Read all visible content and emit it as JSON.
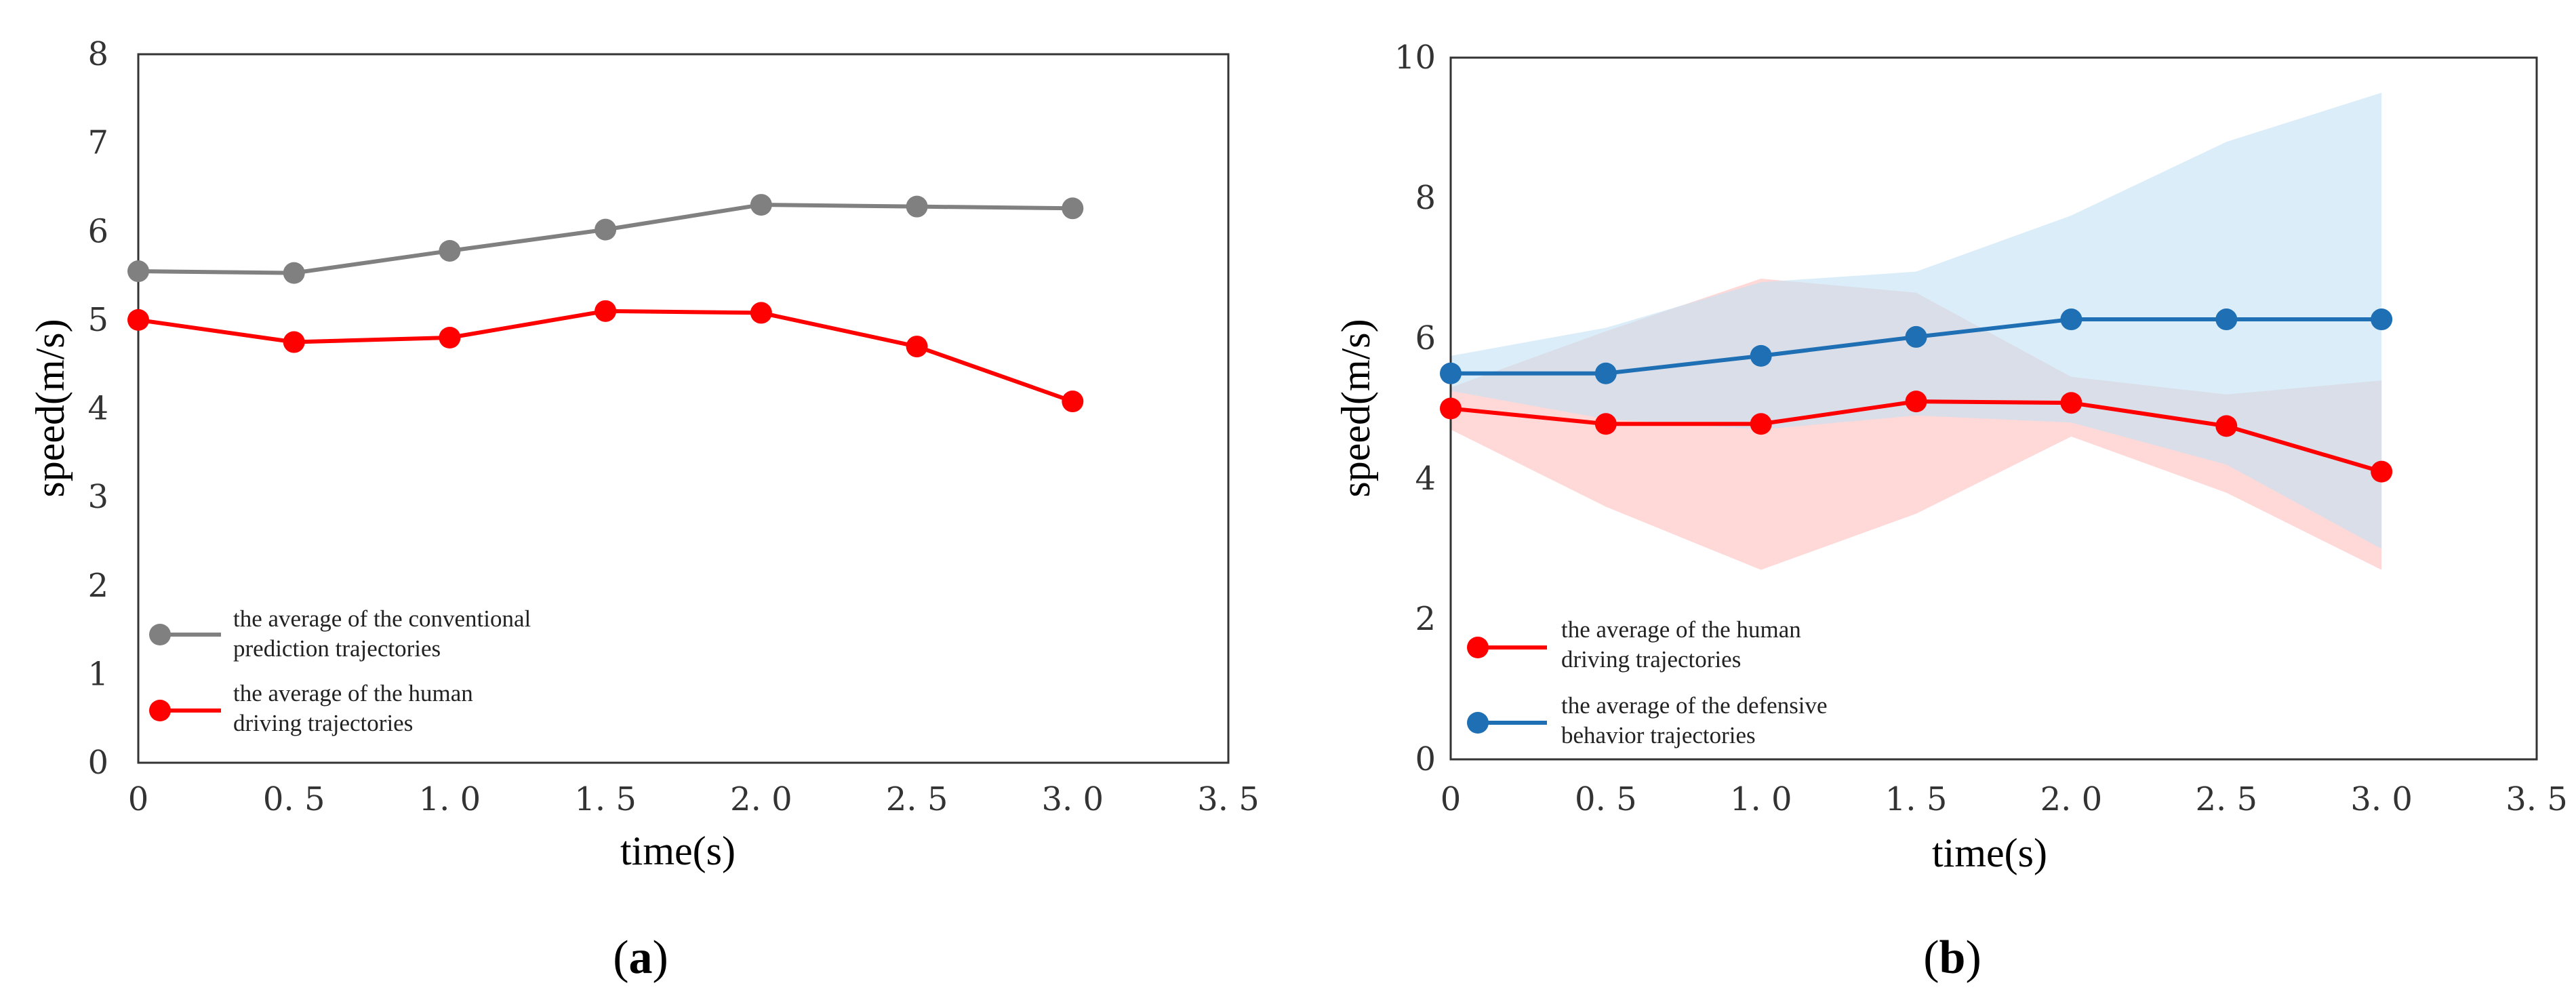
{
  "chart_data": [
    {
      "type": "line",
      "panel_label": [
        "(",
        "a",
        ")"
      ],
      "xlabel": "time(s)",
      "ylabel": "speed(m/s)",
      "xlim": [
        0,
        3.5
      ],
      "ylim": [
        0,
        8
      ],
      "xticks": [
        "0",
        "0. 5",
        "1. 0",
        "1. 5",
        "2. 0",
        "2. 5",
        "3. 0",
        "3. 5"
      ],
      "yticks": [
        "0",
        "1",
        "2",
        "3",
        "4",
        "5",
        "6",
        "7",
        "8"
      ],
      "x": [
        0,
        0.5,
        1.0,
        1.5,
        2.0,
        2.5,
        3.0
      ],
      "series": [
        {
          "name": "the average of the conventional prediction trajectories",
          "legend_lines": [
            "the average of the conventional",
            "prediction trajectories"
          ],
          "color": "#808080",
          "values": [
            5.55,
            5.53,
            5.78,
            6.02,
            6.3,
            6.28,
            6.26
          ]
        },
        {
          "name": "the average of the human driving trajectories",
          "legend_lines": [
            "the average of the human",
            "driving trajectories"
          ],
          "color": "#ff0000",
          "values": [
            5.0,
            4.75,
            4.8,
            5.1,
            5.08,
            4.7,
            4.08
          ]
        }
      ],
      "legend_position": "bottom-left"
    },
    {
      "type": "line",
      "panel_label": [
        "(",
        "b",
        ")"
      ],
      "xlabel": "time(s)",
      "ylabel": "speed(m/s)",
      "xlim": [
        0,
        3.5
      ],
      "ylim": [
        0,
        10
      ],
      "xticks": [
        "0",
        "0. 5",
        "1. 0",
        "1. 5",
        "2. 0",
        "2. 5",
        "3. 0",
        "3. 5"
      ],
      "yticks": [
        "0",
        "2",
        "4",
        "6",
        "8",
        "10"
      ],
      "x": [
        0,
        0.5,
        1.0,
        1.5,
        2.0,
        2.5,
        3.0
      ],
      "series": [
        {
          "name": "the average of the human driving trajectories",
          "legend_lines": [
            "the average of the human",
            "driving trajectories"
          ],
          "color": "#ff0000",
          "band_color": "#ffc0c0",
          "values": [
            5.0,
            4.78,
            4.78,
            5.1,
            5.08,
            4.75,
            4.1
          ],
          "band_upper": [
            5.3,
            6.1,
            6.85,
            6.65,
            5.45,
            5.2,
            5.4
          ],
          "band_lower": [
            4.7,
            3.6,
            2.7,
            3.5,
            4.6,
            3.8,
            2.7
          ]
        },
        {
          "name": "the average of the defensive behavior trajectories",
          "legend_lines": [
            "the average of the defensive",
            "behavior trajectories"
          ],
          "color": "#1f6fb4",
          "band_color": "#c4e2f4",
          "values": [
            5.5,
            5.5,
            5.75,
            6.02,
            6.27,
            6.27,
            6.27
          ],
          "band_upper": [
            5.75,
            6.15,
            6.8,
            6.95,
            7.75,
            8.8,
            9.5
          ],
          "band_lower": [
            5.25,
            4.85,
            4.7,
            4.9,
            4.8,
            4.2,
            3.0
          ]
        }
      ],
      "legend_position": "bottom-left"
    }
  ]
}
